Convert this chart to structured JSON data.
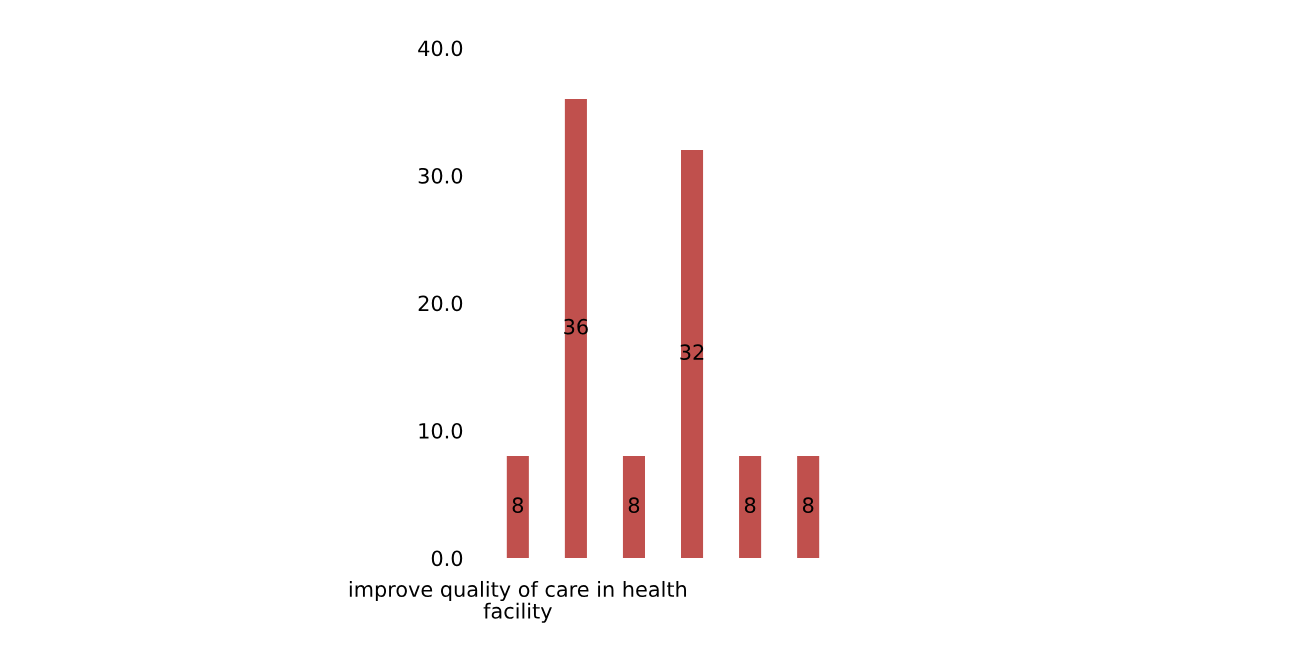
{
  "chart_data": {
    "type": "bar",
    "categories": [
      "improve quality of care in health facility",
      null,
      null,
      null,
      null,
      null
    ],
    "values": [
      8,
      36,
      8,
      32,
      8,
      8
    ],
    "color": "#c0504d",
    "ylim": [
      0,
      40
    ],
    "yticks": [
      {
        "value": 0,
        "label": "0.0"
      },
      {
        "value": 10,
        "label": "10.0"
      },
      {
        "value": 20,
        "label": "20.0"
      },
      {
        "value": 30,
        "label": "30.0"
      },
      {
        "value": 40,
        "label": "40.0"
      }
    ],
    "data_labels": true,
    "grid": false,
    "legend": false
  }
}
